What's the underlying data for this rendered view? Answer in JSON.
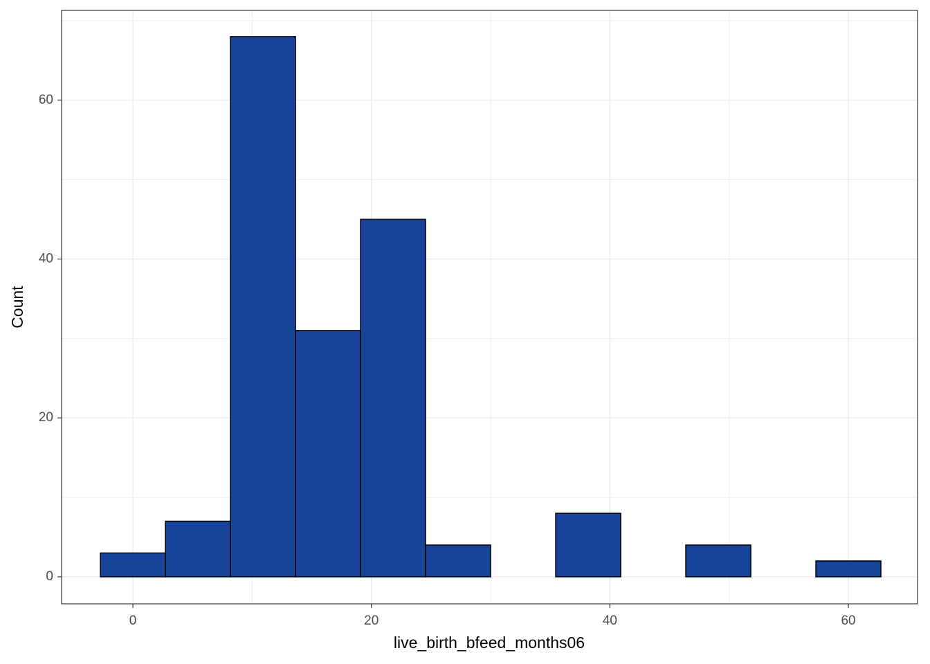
{
  "chart_data": {
    "type": "histogram",
    "x_label": "live_birth_bfeed_months06",
    "y_label": "Count",
    "bins": [
      -2.727,
      2.727,
      8.182,
      13.636,
      19.091,
      24.545,
      30,
      35.455,
      40.909,
      46.364,
      51.818,
      57.273,
      62.727
    ],
    "values": [
      3,
      7,
      68,
      31,
      45,
      4,
      0,
      8,
      0,
      4,
      0,
      2
    ],
    "color": "#17449a",
    "edge_color": "#000000",
    "xlim": [
      -5.98,
      65.8
    ],
    "ylim": [
      -3.4,
      71.3
    ],
    "xticks": [
      0,
      20,
      40,
      60
    ],
    "yticks": [
      0,
      20,
      40,
      60
    ],
    "x_minor_ticks": [
      10,
      30,
      50
    ],
    "y_minor_ticks": [
      10,
      30,
      50,
      70
    ],
    "grid": true
  }
}
